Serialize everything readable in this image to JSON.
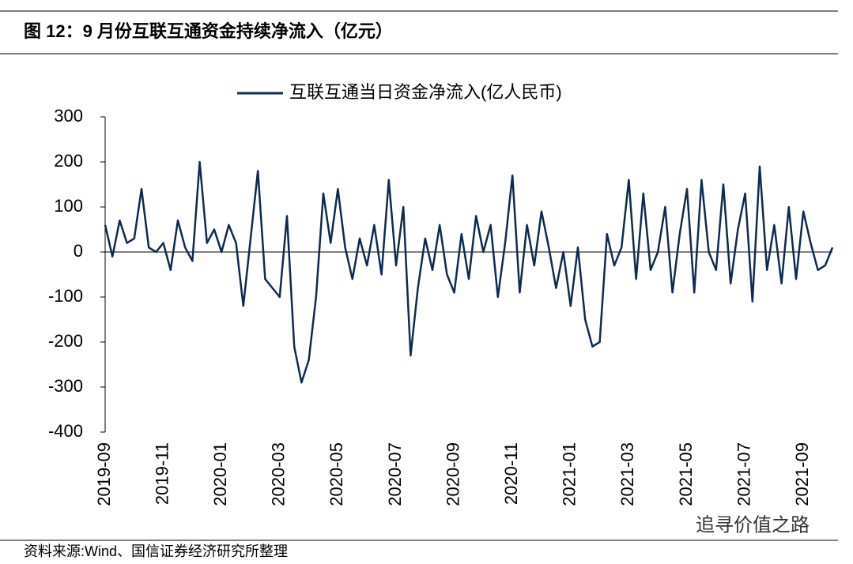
{
  "chart_data": {
    "type": "line",
    "title": "图 12：9 月份互联互通资金持续净流入（亿元）",
    "source": "资料来源:Wind、国信证券经济研究所整理",
    "watermark": "追寻价值之路",
    "series": [
      {
        "name": "互联互通当日资金净流入(亿人民币)",
        "color": "#0d2b52",
        "values": [
          60,
          -10,
          70,
          20,
          30,
          140,
          10,
          0,
          20,
          -40,
          70,
          10,
          -20,
          200,
          20,
          50,
          0,
          60,
          20,
          -120,
          30,
          180,
          -60,
          -80,
          -100,
          80,
          -210,
          -290,
          -240,
          -100,
          130,
          20,
          140,
          10,
          -60,
          30,
          -30,
          60,
          -50,
          160,
          -30,
          100,
          -230,
          -80,
          30,
          -40,
          60,
          -50,
          -90,
          40,
          -60,
          80,
          0,
          60,
          -100,
          20,
          170,
          -90,
          60,
          -30,
          90,
          10,
          -80,
          0,
          -120,
          10,
          -150,
          -210,
          -200,
          40,
          -30,
          10,
          160,
          -60,
          130,
          -40,
          0,
          100,
          -90,
          40,
          140,
          -90,
          160,
          0,
          -40,
          150,
          -70,
          50,
          130,
          -110,
          190,
          -40,
          60,
          -70,
          100,
          -60,
          90,
          20,
          -40,
          -30,
          10
        ]
      }
    ],
    "categories": [
      "2019-09",
      null,
      null,
      null,
      null,
      null,
      null,
      null,
      "2019-11",
      null,
      null,
      null,
      null,
      null,
      null,
      null,
      "2020-01",
      null,
      null,
      null,
      null,
      null,
      null,
      null,
      "2020-03",
      null,
      null,
      null,
      null,
      null,
      null,
      null,
      "2020-05",
      null,
      null,
      null,
      null,
      null,
      null,
      null,
      "2020-07",
      null,
      null,
      null,
      null,
      null,
      null,
      null,
      "2020-09",
      null,
      null,
      null,
      null,
      null,
      null,
      null,
      "2020-11",
      null,
      null,
      null,
      null,
      null,
      null,
      null,
      "2021-01",
      null,
      null,
      null,
      null,
      null,
      null,
      null,
      "2021-03",
      null,
      null,
      null,
      null,
      null,
      null,
      null,
      "2021-05",
      null,
      null,
      null,
      null,
      null,
      null,
      null,
      "2021-07",
      null,
      null,
      null,
      null,
      null,
      null,
      null,
      "2021-09",
      null,
      null,
      null,
      null
    ],
    "ylim": [
      -400,
      300
    ],
    "yticks": [
      -400,
      -300,
      -200,
      -100,
      0,
      100,
      200,
      300
    ],
    "grid": false,
    "legend": "top"
  }
}
